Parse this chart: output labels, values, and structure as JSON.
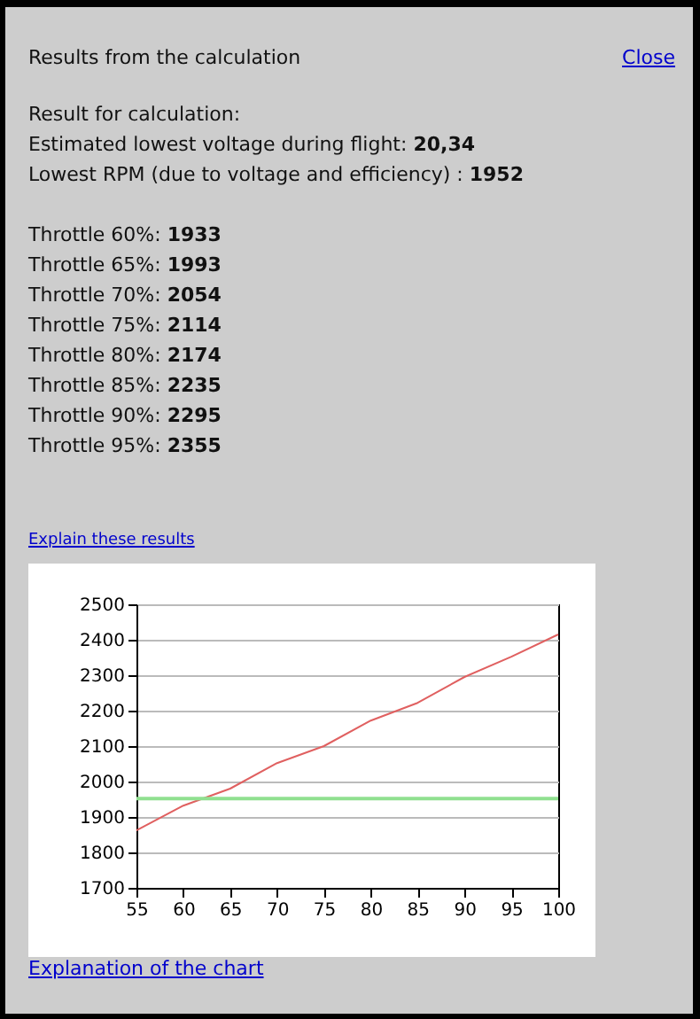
{
  "chart_data": {
    "type": "line",
    "title": "Results from the calculation",
    "annotations": [
      "Close",
      "Result for calculation:",
      "Estimated lowest voltage during flight: 20,34",
      "Lowest RPM (due to voltage and efficiency) : 1952",
      "Throttle 60%: 1933",
      "Throttle 65%: 1993",
      "Throttle 70%: 2054",
      "Throttle 75%: 2114",
      "Throttle 80%: 2174",
      "Throttle 85%: 2235",
      "Throttle 90%: 2295",
      "Throttle 95%: 2355",
      "Explain these results",
      "Explanation of the chart"
    ],
    "x": [
      55,
      60,
      65,
      70,
      75,
      80,
      85,
      90,
      95,
      100
    ],
    "series": [
      {
        "color": "#e06060",
        "values": [
          1862,
          1932,
          1980,
          2052,
          2100,
          2172,
          2222,
          2295,
          2352,
          2415
        ]
      }
    ],
    "ref_lines": [
      {
        "axis": "y",
        "value": 1952,
        "color": "#90e090"
      }
    ],
    "xlim": [
      55,
      100
    ],
    "xticks": [
      55,
      60,
      65,
      70,
      75,
      80,
      85,
      90,
      95,
      100
    ],
    "ylim": [
      1700,
      2500
    ],
    "yticks": [
      1700,
      1800,
      1900,
      2000,
      2100,
      2200,
      2300,
      2400,
      2500
    ],
    "grid": "y",
    "legend": false
  }
}
